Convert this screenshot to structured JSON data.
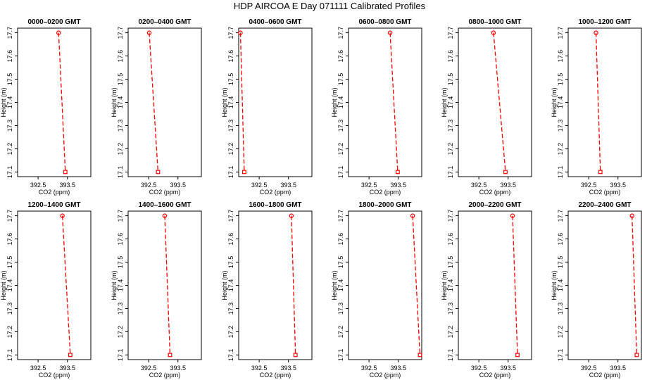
{
  "page_title": "HDP AIRCOA E  Day 071111  Calibrated Profiles",
  "colors": {
    "series": "#ff0000",
    "axes": "#000000",
    "background": "#ffffff"
  },
  "chart_data": [
    {
      "type": "line",
      "title": "0000–0200 GMT",
      "xlabel": "CO2 (ppm)",
      "ylabel": "Height (m)",
      "xlim": [
        391.8,
        394.3
      ],
      "ylim": [
        17.08,
        17.72
      ],
      "xticks": [
        392.5,
        393.5
      ],
      "xtick_labels": [
        "392.5",
        "393.5"
      ],
      "yticks": [
        17.1,
        17.2,
        17.3,
        17.4,
        17.5,
        17.6,
        17.7
      ],
      "ytick_labels": [
        "17.1",
        "17.2",
        "17.3",
        "17.4",
        "17.5",
        "17.6",
        "17.7"
      ],
      "x": [
        393.2,
        393.43
      ],
      "y": [
        17.7,
        17.1
      ]
    },
    {
      "type": "line",
      "title": "0200–0400 GMT",
      "xlabel": "CO2 (ppm)",
      "ylabel": "Height (m)",
      "xlim": [
        391.8,
        394.3
      ],
      "ylim": [
        17.08,
        17.72
      ],
      "xticks": [
        392.5,
        393.5
      ],
      "xtick_labels": [
        "392.5",
        "393.5"
      ],
      "yticks": [
        17.1,
        17.2,
        17.3,
        17.4,
        17.5,
        17.6,
        17.7
      ],
      "ytick_labels": [
        "17.1",
        "17.2",
        "17.3",
        "17.4",
        "17.5",
        "17.6",
        "17.7"
      ],
      "x": [
        392.52,
        392.82
      ],
      "y": [
        17.7,
        17.1
      ]
    },
    {
      "type": "line",
      "title": "0400–0600 GMT",
      "xlabel": "CO2 (ppm)",
      "ylabel": "Height (m)",
      "xlim": [
        391.8,
        394.3
      ],
      "ylim": [
        17.08,
        17.72
      ],
      "xticks": [
        392.5,
        393.5
      ],
      "xtick_labels": [
        "392.5",
        "393.5"
      ],
      "yticks": [
        17.1,
        17.2,
        17.3,
        17.4,
        17.5,
        17.6,
        17.7
      ],
      "ytick_labels": [
        "17.1",
        "17.2",
        "17.3",
        "17.4",
        "17.5",
        "17.6",
        "17.7"
      ],
      "x": [
        391.86,
        391.99
      ],
      "y": [
        17.7,
        17.1
      ]
    },
    {
      "type": "line",
      "title": "0600–0800 GMT",
      "xlabel": "CO2 (ppm)",
      "ylabel": "Height (m)",
      "xlim": [
        391.8,
        394.3
      ],
      "ylim": [
        17.08,
        17.72
      ],
      "xticks": [
        392.5,
        393.5
      ],
      "xtick_labels": [
        "392.5",
        "393.5"
      ],
      "yticks": [
        17.1,
        17.2,
        17.3,
        17.4,
        17.5,
        17.6,
        17.7
      ],
      "ytick_labels": [
        "17.1",
        "17.2",
        "17.3",
        "17.4",
        "17.5",
        "17.6",
        "17.7"
      ],
      "x": [
        393.22,
        393.48
      ],
      "y": [
        17.7,
        17.1
      ]
    },
    {
      "type": "line",
      "title": "0800–1000 GMT",
      "xlabel": "CO2 (ppm)",
      "ylabel": "Height (m)",
      "xlim": [
        391.8,
        394.3
      ],
      "ylim": [
        17.08,
        17.72
      ],
      "xticks": [
        392.5,
        393.5
      ],
      "xtick_labels": [
        "392.5",
        "393.5"
      ],
      "yticks": [
        17.1,
        17.2,
        17.3,
        17.4,
        17.5,
        17.6,
        17.7
      ],
      "ytick_labels": [
        "17.1",
        "17.2",
        "17.3",
        "17.4",
        "17.5",
        "17.6",
        "17.7"
      ],
      "x": [
        393.0,
        393.41
      ],
      "y": [
        17.7,
        17.1
      ]
    },
    {
      "type": "line",
      "title": "1000–1200 GMT",
      "xlabel": "CO2 (ppm)",
      "ylabel": "Height (m)",
      "xlim": [
        391.8,
        394.3
      ],
      "ylim": [
        17.08,
        17.72
      ],
      "xticks": [
        392.5,
        393.5
      ],
      "xtick_labels": [
        "392.5",
        "393.5"
      ],
      "yticks": [
        17.1,
        17.2,
        17.3,
        17.4,
        17.5,
        17.6,
        17.7
      ],
      "ytick_labels": [
        "17.1",
        "17.2",
        "17.3",
        "17.4",
        "17.5",
        "17.6",
        "17.7"
      ],
      "x": [
        392.75,
        392.9
      ],
      "y": [
        17.7,
        17.1
      ]
    },
    {
      "type": "line",
      "title": "1200–1400 GMT",
      "xlabel": "CO2 (ppm)",
      "ylabel": "Height (m)",
      "xlim": [
        391.8,
        394.3
      ],
      "ylim": [
        17.08,
        17.72
      ],
      "xticks": [
        392.5,
        393.5
      ],
      "xtick_labels": [
        "392.5",
        "393.5"
      ],
      "yticks": [
        17.1,
        17.2,
        17.3,
        17.4,
        17.5,
        17.6,
        17.7
      ],
      "ytick_labels": [
        "17.1",
        "17.2",
        "17.3",
        "17.4",
        "17.5",
        "17.6",
        "17.7"
      ],
      "x": [
        393.33,
        393.6
      ],
      "y": [
        17.7,
        17.1
      ]
    },
    {
      "type": "line",
      "title": "1400–1600 GMT",
      "xlabel": "CO2 (ppm)",
      "ylabel": "Height (m)",
      "xlim": [
        391.8,
        394.3
      ],
      "ylim": [
        17.08,
        17.72
      ],
      "xticks": [
        392.5,
        393.5
      ],
      "xtick_labels": [
        "392.5",
        "393.5"
      ],
      "yticks": [
        17.1,
        17.2,
        17.3,
        17.4,
        17.5,
        17.6,
        17.7
      ],
      "ytick_labels": [
        "17.1",
        "17.2",
        "17.3",
        "17.4",
        "17.5",
        "17.6",
        "17.7"
      ],
      "x": [
        393.05,
        393.23
      ],
      "y": [
        17.7,
        17.1
      ]
    },
    {
      "type": "line",
      "title": "1600–1800 GMT",
      "xlabel": "CO2 (ppm)",
      "ylabel": "Height (m)",
      "xlim": [
        391.8,
        394.3
      ],
      "ylim": [
        17.08,
        17.72
      ],
      "xticks": [
        392.5,
        393.5
      ],
      "xtick_labels": [
        "392.5",
        "393.5"
      ],
      "yticks": [
        17.1,
        17.2,
        17.3,
        17.4,
        17.5,
        17.6,
        17.7
      ],
      "ytick_labels": [
        "17.1",
        "17.2",
        "17.3",
        "17.4",
        "17.5",
        "17.6",
        "17.7"
      ],
      "x": [
        393.6,
        393.74
      ],
      "y": [
        17.7,
        17.1
      ]
    },
    {
      "type": "line",
      "title": "1800–2000 GMT",
      "xlabel": "CO2 (ppm)",
      "ylabel": "Height (m)",
      "xlim": [
        391.8,
        394.3
      ],
      "ylim": [
        17.08,
        17.72
      ],
      "xticks": [
        392.5,
        393.5
      ],
      "xtick_labels": [
        "392.5",
        "393.5"
      ],
      "yticks": [
        17.1,
        17.2,
        17.3,
        17.4,
        17.5,
        17.6,
        17.7
      ],
      "ytick_labels": [
        "17.1",
        "17.2",
        "17.3",
        "17.4",
        "17.5",
        "17.6",
        "17.7"
      ],
      "x": [
        393.99,
        394.24
      ],
      "y": [
        17.7,
        17.1
      ]
    },
    {
      "type": "line",
      "title": "2000–2200 GMT",
      "xlabel": "CO2 (ppm)",
      "ylabel": "Height (m)",
      "xlim": [
        391.8,
        394.3
      ],
      "ylim": [
        17.08,
        17.72
      ],
      "xticks": [
        392.5,
        393.5
      ],
      "xtick_labels": [
        "392.5",
        "393.5"
      ],
      "yticks": [
        17.1,
        17.2,
        17.3,
        17.4,
        17.5,
        17.6,
        17.7
      ],
      "ytick_labels": [
        "17.1",
        "17.2",
        "17.3",
        "17.4",
        "17.5",
        "17.6",
        "17.7"
      ],
      "x": [
        393.65,
        393.82
      ],
      "y": [
        17.7,
        17.1
      ]
    },
    {
      "type": "line",
      "title": "2200–2400 GMT",
      "xlabel": "CO2 (ppm)",
      "ylabel": "Height (m)",
      "xlim": [
        391.8,
        394.3
      ],
      "ylim": [
        17.08,
        17.72
      ],
      "xticks": [
        392.5,
        393.5
      ],
      "xtick_labels": [
        "392.5",
        "393.5"
      ],
      "yticks": [
        17.1,
        17.2,
        17.3,
        17.4,
        17.5,
        17.6,
        17.7
      ],
      "ytick_labels": [
        "17.1",
        "17.2",
        "17.3",
        "17.4",
        "17.5",
        "17.6",
        "17.7"
      ],
      "x": [
        393.98,
        394.14
      ],
      "y": [
        17.7,
        17.1
      ]
    }
  ]
}
